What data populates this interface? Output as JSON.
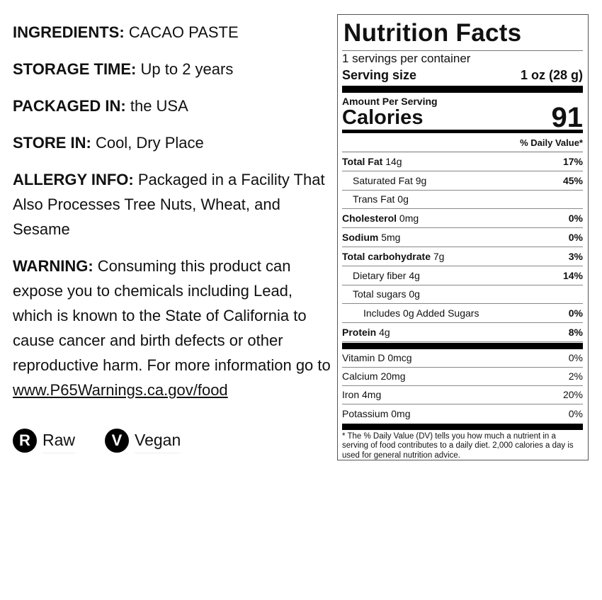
{
  "info": [
    {
      "label": "INGREDIENTS:",
      "value": "CACAO PASTE"
    },
    {
      "label": "STORAGE TIME:",
      "value": "Up to 2 years"
    },
    {
      "label": "PACKAGED IN:",
      "value": "the USA"
    },
    {
      "label": "STORE IN:",
      "value": "Cool, Dry Place"
    },
    {
      "label": "ALLERGY INFO:",
      "value": "Packaged in a Facility That Also Processes Tree Nuts, Wheat, and Sesame"
    }
  ],
  "warning": {
    "label": "WARNING:",
    "text": "Consuming this product can expose you to chemicals including Lead, which is known to the State of California to cause cancer and birth defects or other reproductive harm. For more information go to",
    "link": "www.P65Warnings.ca.gov/food"
  },
  "badges": [
    {
      "letter": "R",
      "label": "Raw"
    },
    {
      "letter": "V",
      "label": "Vegan"
    }
  ],
  "nutrition": {
    "title": "Nutrition Facts",
    "servings": "1 servings per container",
    "serving_size_label": "Serving size",
    "serving_size": "1 oz (28 g)",
    "amount_per_serving": "Amount Per Serving",
    "calories_label": "Calories",
    "calories": "91",
    "dv_header": "% Daily Value*",
    "nutrients": [
      {
        "name": "Total Fat",
        "amount": "14g",
        "dv": "17%",
        "bold": true,
        "indent": 0
      },
      {
        "name": "Saturated Fat",
        "amount": "9g",
        "dv": "45%",
        "bold": false,
        "indent": 1
      },
      {
        "name": "Trans Fat",
        "amount": "0g",
        "dv": "",
        "bold": false,
        "indent": 1
      },
      {
        "name": "Cholesterol",
        "amount": "0mg",
        "dv": "0%",
        "bold": true,
        "indent": 0
      },
      {
        "name": "Sodium",
        "amount": "5mg",
        "dv": "0%",
        "bold": true,
        "indent": 0
      },
      {
        "name": "Total carbohydrate",
        "amount": "7g",
        "dv": "3%",
        "bold": true,
        "indent": 0
      },
      {
        "name": "Dietary fiber",
        "amount": "4g",
        "dv": "14%",
        "bold": false,
        "indent": 1
      },
      {
        "name": "Total sugars",
        "amount": "0g",
        "dv": "",
        "bold": false,
        "indent": 1
      },
      {
        "name": "Includes 0g Added Sugars",
        "amount": "",
        "dv": "0%",
        "bold": false,
        "indent": 2
      },
      {
        "name": "Protein",
        "amount": "4g",
        "dv": "8%",
        "bold": true,
        "indent": 0
      }
    ],
    "vitamins": [
      {
        "name": "Vitamin D 0mcg",
        "dv": "0%"
      },
      {
        "name": "Calcium 20mg",
        "dv": "2%"
      },
      {
        "name": "Iron 4mg",
        "dv": "20%"
      },
      {
        "name": "Potassium 0mg",
        "dv": "0%"
      }
    ],
    "footnote": "* The % Daily Value (DV) tells you how much a nutrient in a serving of food contributes to a daily diet. 2,000 calories a day is used for general nutrition advice."
  }
}
